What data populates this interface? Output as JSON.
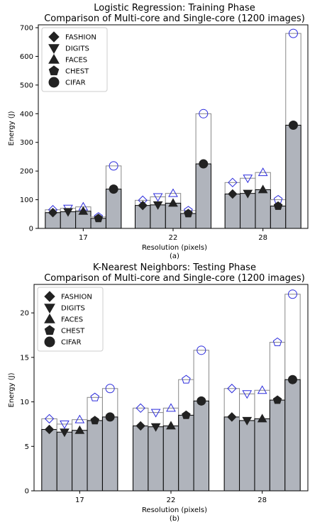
{
  "chart_data": [
    {
      "type": "bar",
      "title": "Logistic Regression: Training Phase",
      "subtitle": "Comparison of Multi-core and Single-core (1200 images)",
      "xlabel": "Resolution (pixels)",
      "ylabel": "Energy (J)",
      "caption": "(a)",
      "categories": [
        "17",
        "22",
        "28"
      ],
      "ylim": [
        0,
        710
      ],
      "yticks": [
        "0",
        "100",
        "200",
        "300",
        "400",
        "500",
        "600",
        "700"
      ],
      "legend_position": "top-left",
      "grid": false,
      "series": [
        {
          "name": "FASHION",
          "marker": "diamond",
          "multi_core": [
            55,
            80,
            120
          ],
          "single_core": [
            65,
            98,
            160
          ]
        },
        {
          "name": "DIGITS",
          "marker": "triangle-down",
          "multi_core": [
            58,
            82,
            122
          ],
          "single_core": [
            70,
            110,
            175
          ]
        },
        {
          "name": "FACES",
          "marker": "triangle-up",
          "multi_core": [
            60,
            88,
            135
          ],
          "single_core": [
            75,
            122,
            195
          ]
        },
        {
          "name": "CHEST",
          "marker": "pentagon",
          "multi_core": [
            35,
            52,
            78
          ],
          "single_core": [
            40,
            62,
            100
          ]
        },
        {
          "name": "CIFAR",
          "marker": "circle",
          "multi_core": [
            137,
            225,
            360
          ],
          "single_core": [
            218,
            400,
            680
          ]
        }
      ]
    },
    {
      "type": "bar",
      "title": "K-Nearest Neighbors: Testing Phase",
      "subtitle": "Comparison of Multi-core and Single-core (1200 images)",
      "xlabel": "Resolution (pixels)",
      "ylabel": "Energy (J)",
      "caption": "(b)",
      "categories": [
        "17",
        "22",
        "28"
      ],
      "ylim": [
        0,
        23.2
      ],
      "yticks": [
        "0",
        "5",
        "10",
        "15",
        "20"
      ],
      "legend_position": "top-left",
      "grid": false,
      "series": [
        {
          "name": "FASHION",
          "marker": "diamond",
          "multi_core": [
            6.9,
            7.3,
            8.3
          ],
          "single_core": [
            8.1,
            9.3,
            11.5
          ]
        },
        {
          "name": "DIGITS",
          "marker": "triangle-down",
          "multi_core": [
            6.6,
            7.2,
            7.9
          ],
          "single_core": [
            7.5,
            8.8,
            10.9
          ]
        },
        {
          "name": "FACES",
          "marker": "triangle-up",
          "multi_core": [
            6.8,
            7.3,
            8.1
          ],
          "single_core": [
            8.0,
            9.3,
            11.3
          ]
        },
        {
          "name": "CHEST",
          "marker": "pentagon",
          "multi_core": [
            7.9,
            8.5,
            10.2
          ],
          "single_core": [
            10.5,
            12.5,
            16.7
          ]
        },
        {
          "name": "CIFAR",
          "marker": "circle",
          "multi_core": [
            8.3,
            10.1,
            12.5
          ],
          "single_core": [
            11.5,
            15.8,
            22.1
          ]
        }
      ]
    }
  ]
}
